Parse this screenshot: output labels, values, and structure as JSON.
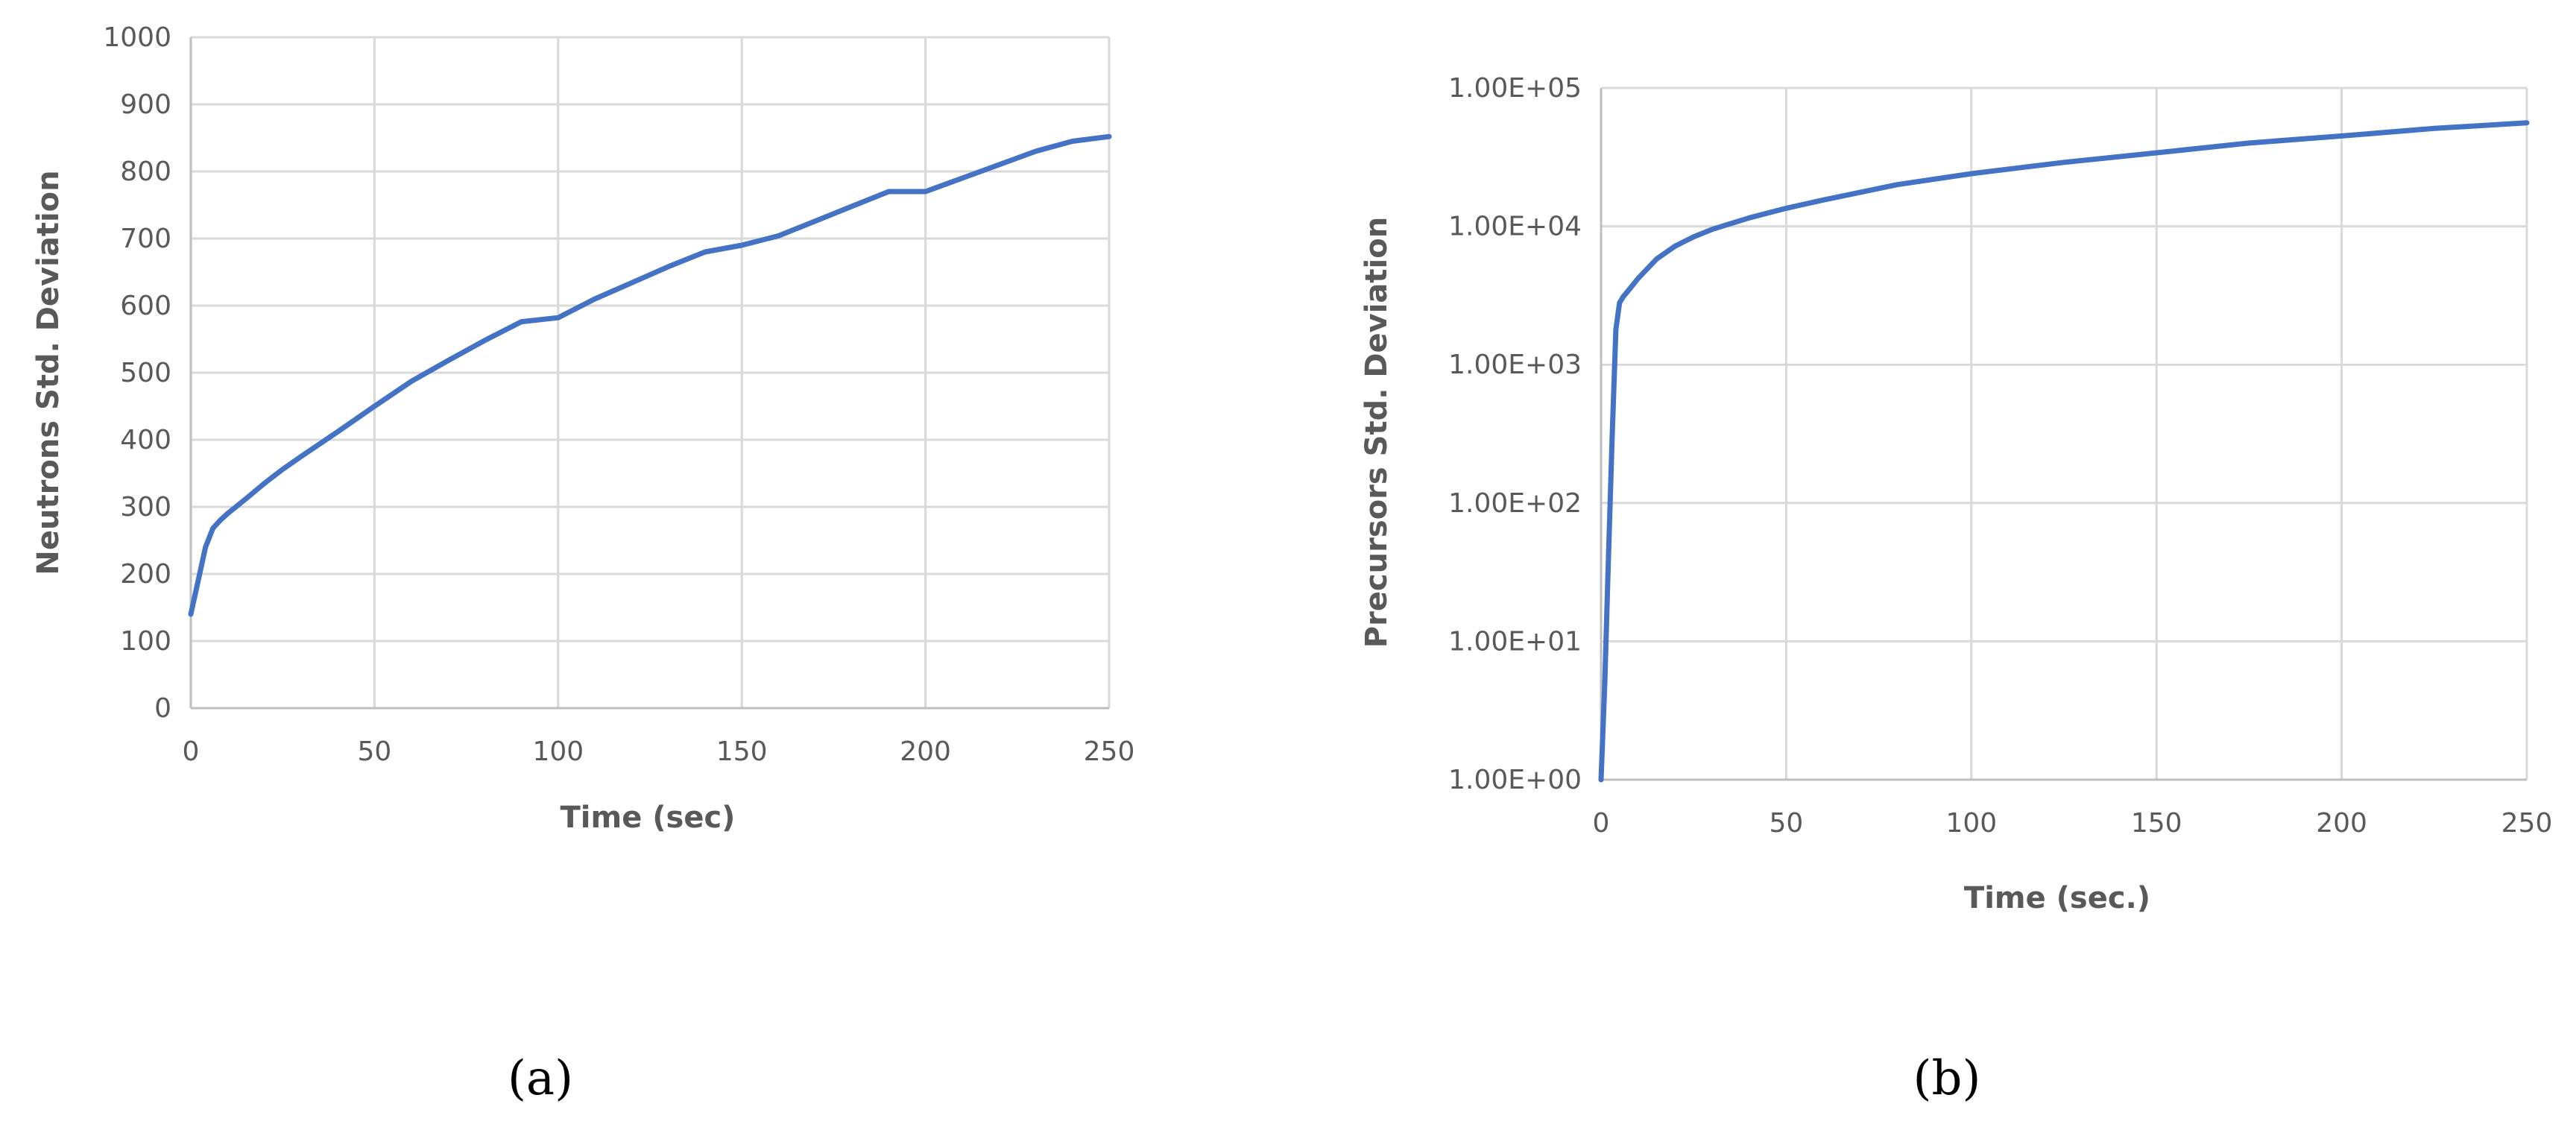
{
  "colors": {
    "series": "#4472c4"
  },
  "chart_data": [
    {
      "type": "line",
      "caption": "(a)",
      "xlabel": "Time (sec)",
      "ylabel": "Neutrons Std. Deviation",
      "xlim": [
        0,
        250
      ],
      "ylim": [
        0,
        1000
      ],
      "xticks": [
        0,
        50,
        100,
        150,
        200,
        250
      ],
      "yticks": [
        0,
        100,
        200,
        300,
        400,
        500,
        600,
        700,
        800,
        900,
        1000
      ],
      "grid": true,
      "legend": "none",
      "series": [
        {
          "x": [
            0,
            2,
            4,
            6,
            8,
            10,
            15,
            20,
            25,
            30,
            40,
            50,
            60,
            70,
            80,
            90,
            100,
            110,
            120,
            130,
            140,
            150,
            160,
            170,
            180,
            190,
            200,
            210,
            220,
            230,
            240,
            250
          ],
          "y": [
            140,
            190,
            240,
            268,
            280,
            290,
            312,
            335,
            356,
            375,
            412,
            450,
            487,
            518,
            548,
            576,
            582,
            610,
            634,
            658,
            680,
            690,
            704,
            726,
            748,
            770,
            770,
            790,
            810,
            830,
            845,
            852
          ]
        }
      ]
    },
    {
      "type": "line",
      "caption": "(b)",
      "xlabel": "Time (sec.)",
      "ylabel": "Precursors Std. Deviation",
      "xlim": [
        0,
        250
      ],
      "ylim": [
        1,
        100000
      ],
      "yscale": "log",
      "xticks": [
        0,
        50,
        100,
        150,
        200,
        250
      ],
      "yticks": [
        1,
        10,
        100,
        1000,
        10000,
        100000
      ],
      "ytick_labels": [
        "1.00E+00",
        "1.00E+01",
        "1.00E+02",
        "1.00E+03",
        "1.00E+04",
        "1.00E+05"
      ],
      "grid": true,
      "legend": "none",
      "series": [
        {
          "x": [
            0,
            1,
            2,
            3,
            4,
            5,
            6,
            8,
            10,
            15,
            20,
            25,
            30,
            40,
            50,
            60,
            80,
            100,
            125,
            150,
            175,
            200,
            225,
            250
          ],
          "y": [
            1,
            5,
            40,
            300,
            1800,
            2800,
            3100,
            3600,
            4200,
            5800,
            7200,
            8400,
            9500,
            11500,
            13500,
            15500,
            20000,
            24000,
            29000,
            34000,
            40000,
            45000,
            51000,
            56000
          ]
        }
      ]
    }
  ]
}
